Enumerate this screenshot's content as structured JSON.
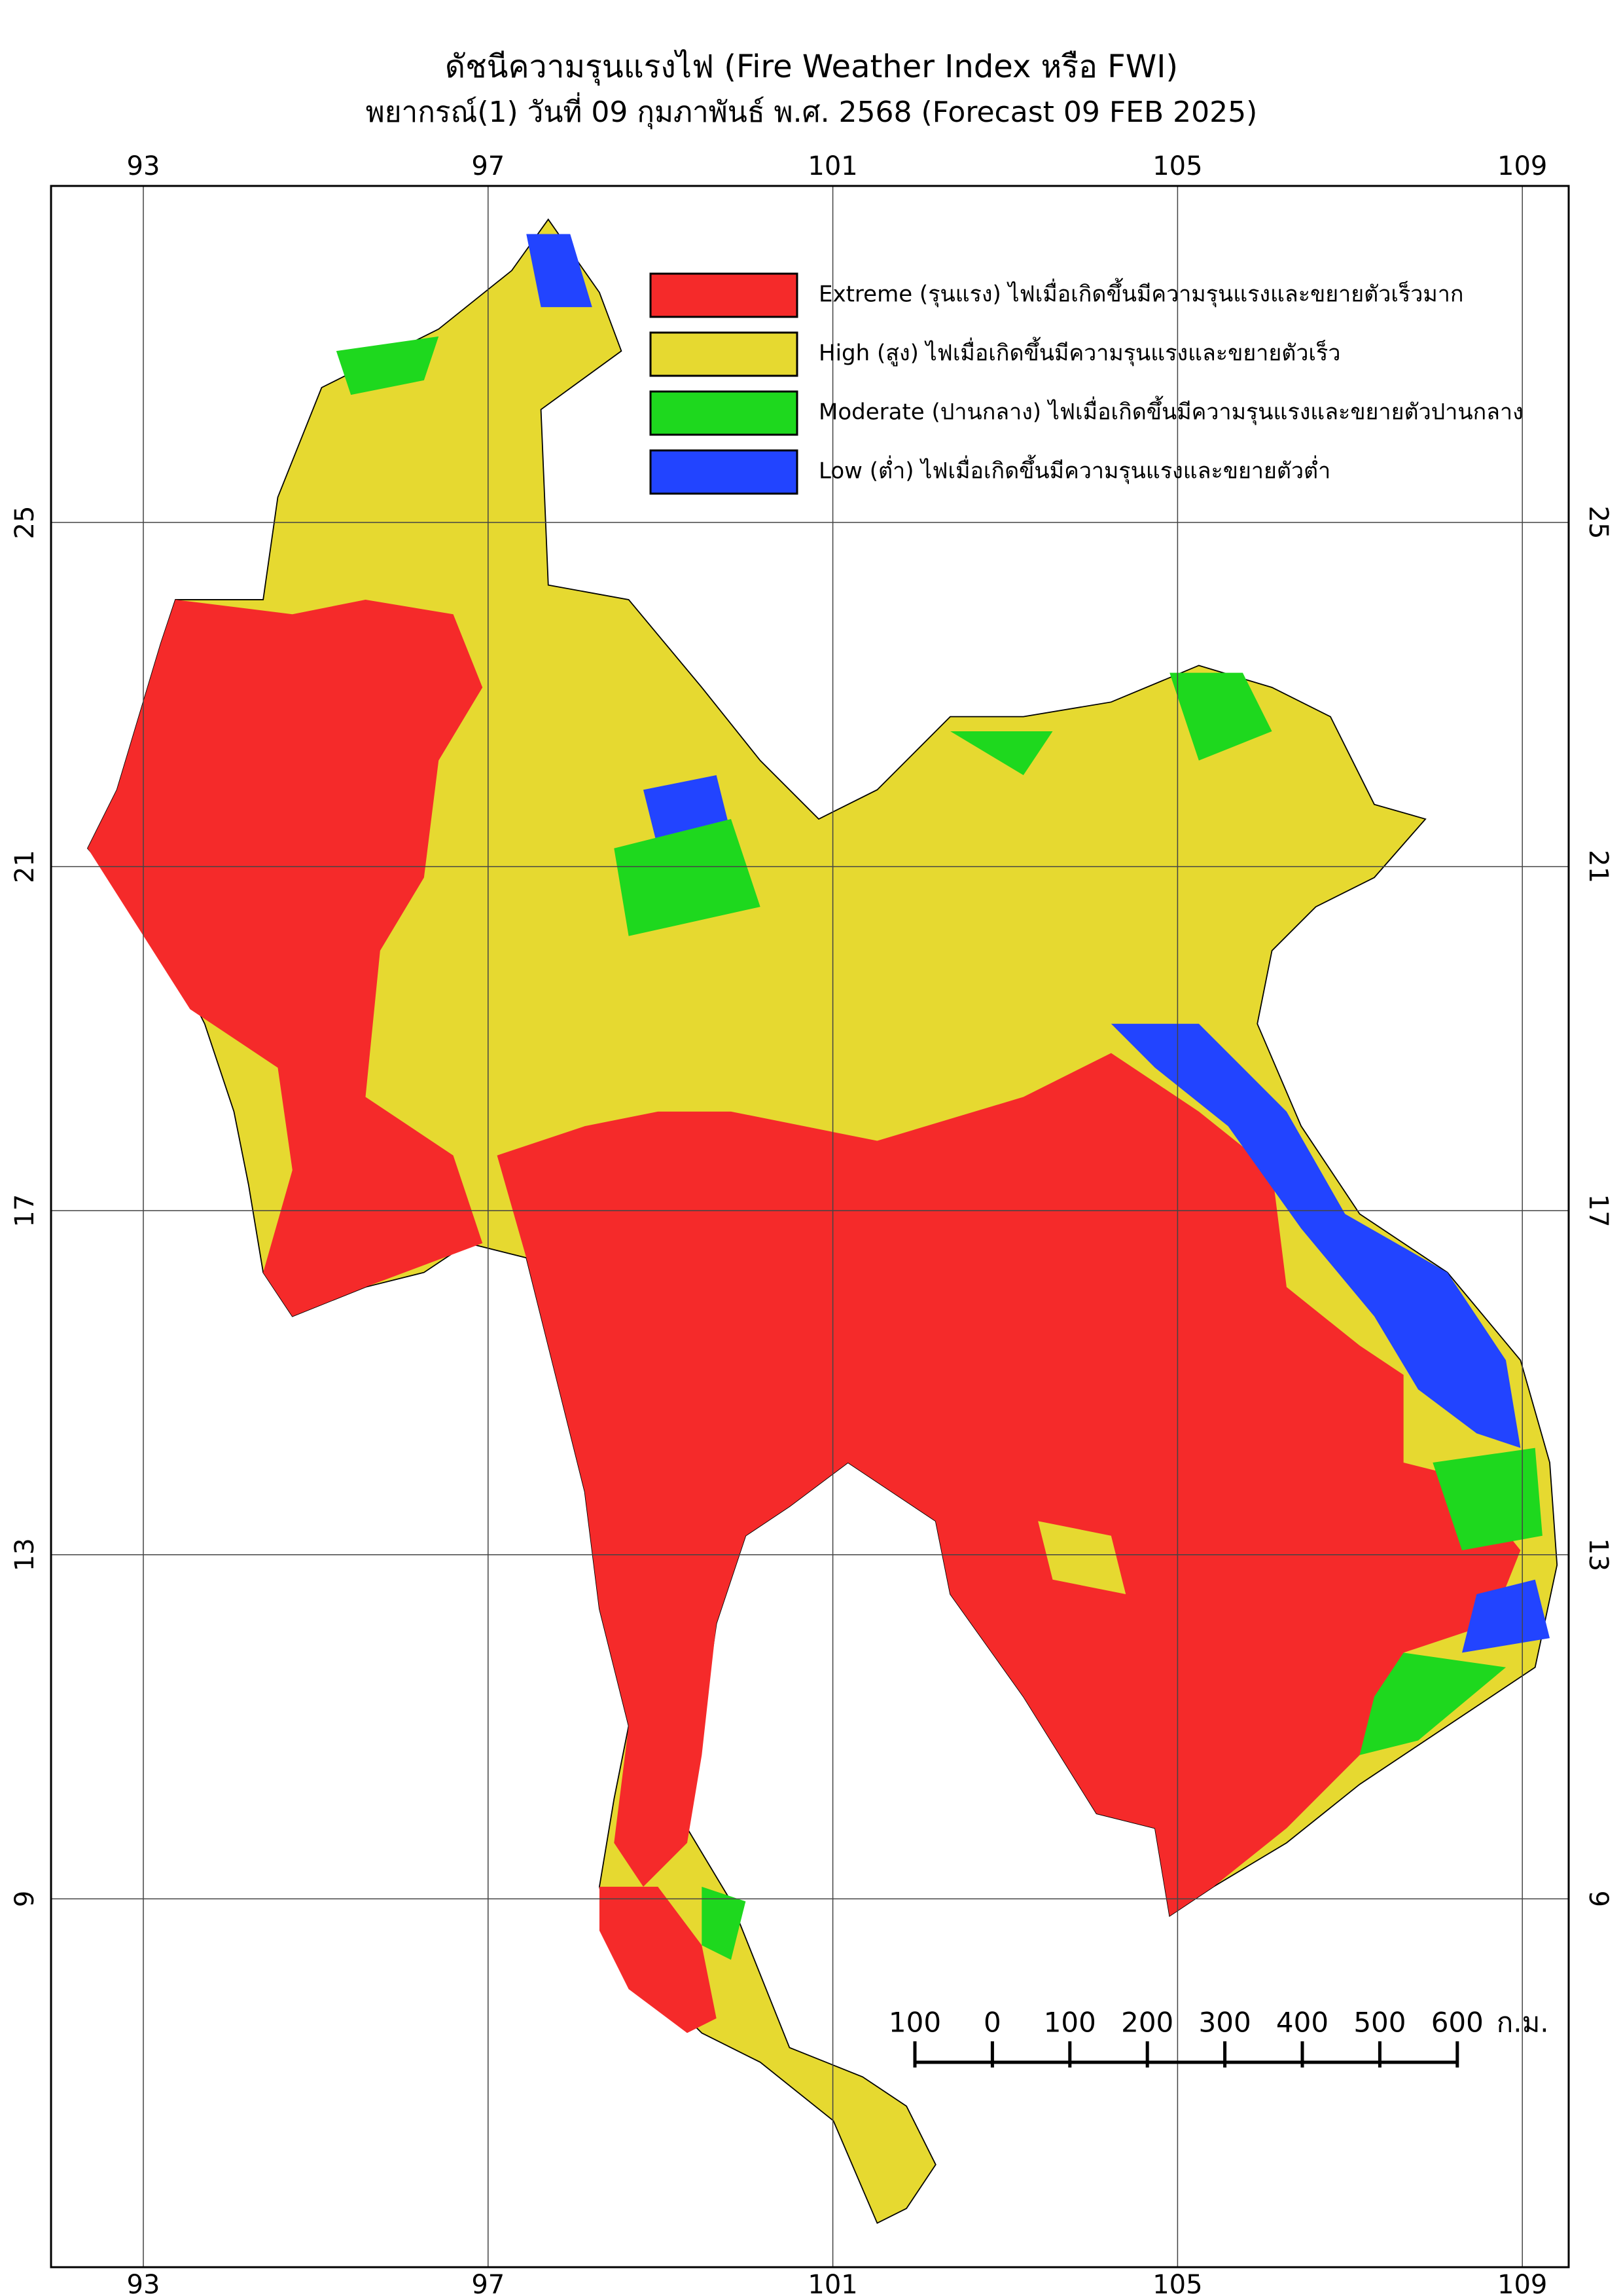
{
  "header": {
    "title": "ดัชนีความรุนแรงไฟ (Fire Weather Index หรือ FWI)",
    "subtitle": "พยากรณ์(1) วันที่ 09 กุมภาพันธ์ พ.ศ. 2568 (Forecast 09 FEB 2025)"
  },
  "map": {
    "lon_ticks": [
      93,
      97,
      101,
      105,
      109
    ],
    "lat_ticks": [
      25,
      21,
      17,
      13,
      9
    ],
    "legend": [
      {
        "label": "Extreme (รุนแรง) ไฟเมื่อเกิดขึ้นมีความรุนแรงและขยายตัวเร็วมาก",
        "color": "#f52a2a"
      },
      {
        "label": "High (สูง) ไฟเมื่อเกิดขึ้นมีความรุนแรงและขยายตัวเร็ว",
        "color": "#e6d930"
      },
      {
        "label": "Moderate (ปานกลาง) ไฟเมื่อเกิดขึ้นมีความรุนแรงและขยายตัวปานกลาง",
        "color": "#1ed81e"
      },
      {
        "label": "Low (ต่ำ) ไฟเมื่อเกิดขึ้นมีความรุนแรงและขยายตัวต่ำ",
        "color": "#2244ff"
      }
    ],
    "scale_bar": {
      "ticks": [
        {
          "value": -100,
          "label": "100"
        },
        0,
        100,
        200,
        300,
        400,
        500,
        600
      ],
      "unit": "ก.ม."
    }
  }
}
